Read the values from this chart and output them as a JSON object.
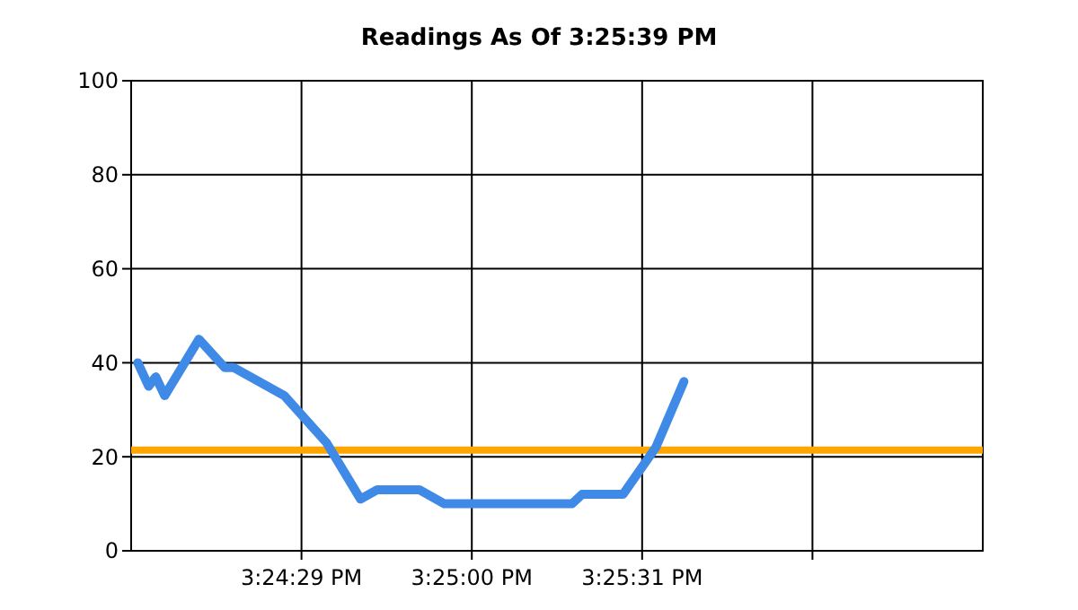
{
  "chart_data": {
    "type": "line",
    "title": "Readings As Of 3:25:39 PM",
    "x": [
      15.39978,
      15.40033,
      15.40069,
      15.40114,
      15.40287,
      15.40417,
      15.40462,
      15.40719,
      15.40932,
      15.41104,
      15.41189,
      15.41401,
      15.41528,
      15.42173,
      15.42224,
      15.42431,
      15.42597,
      15.42739
    ],
    "series": [
      {
        "color": "#3f8ae6",
        "values": [
          40,
          35,
          37,
          33,
          45,
          39,
          39,
          33,
          23,
          11,
          13,
          13,
          10,
          10,
          12,
          12,
          22,
          36
        ]
      }
    ],
    "xlim": [
      15.399444,
      15.4425
    ],
    "xticks": [
      {
        "value": 15.408056,
        "label": "3:24:29 PM"
      },
      {
        "value": 15.416667,
        "label": "3:25:00 PM"
      },
      {
        "value": 15.425278,
        "label": "3:25:31 PM"
      },
      {
        "value": 15.433889,
        "label": null
      }
    ],
    "ylim": [
      0,
      100
    ],
    "yticks": [
      0,
      20,
      40,
      60,
      80,
      100
    ],
    "ref_lines": [
      {
        "axis": "y",
        "value": 21.4,
        "color": "#ffa500"
      }
    ],
    "grid": true,
    "marker": "none",
    "line_style": "solid"
  }
}
